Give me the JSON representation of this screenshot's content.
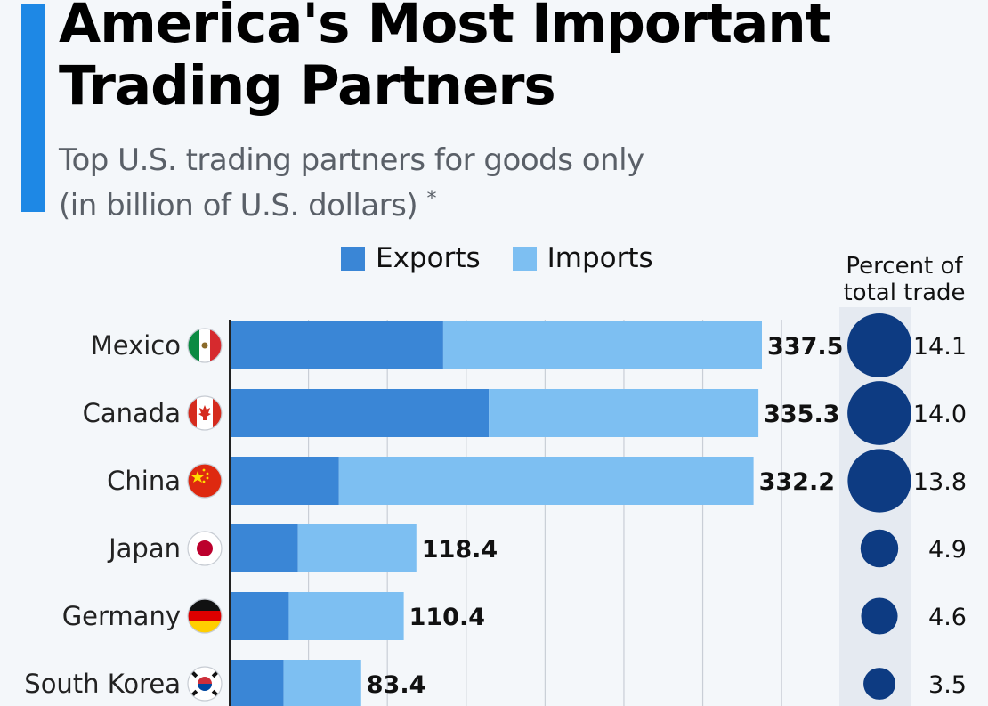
{
  "header": {
    "title_line1": "America's Most Important",
    "title_line2": "Trading Partners",
    "subtitle_line1": "Top U.S. trading partners for goods only",
    "subtitle_line2": "(in billion of U.S. dollars)",
    "subtitle_asterisk": "*"
  },
  "colors": {
    "exports": "#3a86d6",
    "imports": "#7dbff2",
    "bubble": "#0d3b82",
    "accent": "#1e88e5"
  },
  "percent_header_line1": "Percent of",
  "percent_header_line2": "total trade",
  "chart_data": {
    "type": "bar",
    "orientation": "horizontal",
    "stacked": true,
    "categories": [
      "Mexico",
      "Canada",
      "China",
      "Japan",
      "Germany",
      "South Korea"
    ],
    "series": [
      {
        "name": "Exports",
        "values": [
          135.4,
          164.3,
          69.3,
          43.3,
          37.5,
          34.2
        ]
      },
      {
        "name": "Imports",
        "values": [
          202.1,
          171.0,
          262.9,
          75.1,
          72.9,
          49.2
        ]
      }
    ],
    "totals": [
      "337.5",
      "335.3",
      "332.2",
      "118.4",
      "110.4",
      "83.4"
    ],
    "percent_of_total_trade": [
      "14.1",
      "14.0",
      "13.8",
      "4.9",
      "4.6",
      "3.5"
    ],
    "xlim": [
      0,
      350
    ],
    "grid": true,
    "legend_position": "top"
  }
}
